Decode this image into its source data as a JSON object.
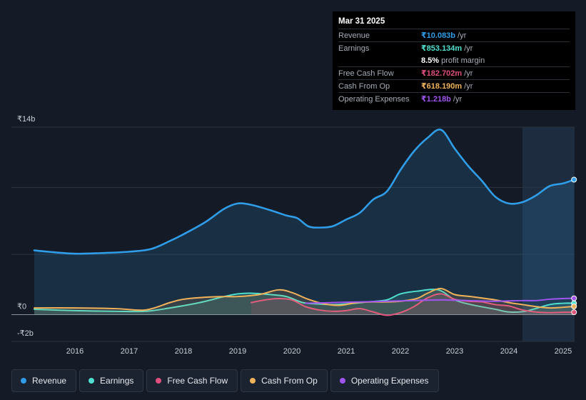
{
  "tooltip": {
    "date": "Mar 31 2025",
    "rows": [
      {
        "label": "Revenue",
        "value": "₹10.083b",
        "unit": "/yr",
        "color": "#2f9de8"
      },
      {
        "label": "Earnings",
        "value": "₹853.134m",
        "unit": "/yr",
        "color": "#4fe0cf"
      },
      {
        "label": "",
        "value": "8.5%",
        "unit": "profit margin",
        "color": "#ffffff"
      },
      {
        "label": "Free Cash Flow",
        "value": "₹182.702m",
        "unit": "/yr",
        "color": "#e0507f"
      },
      {
        "label": "Cash From Op",
        "value": "₹618.190m",
        "unit": "/yr",
        "color": "#f0b25a"
      },
      {
        "label": "Operating Expenses",
        "value": "₹1.218b",
        "unit": "/yr",
        "color": "#a155f0"
      }
    ]
  },
  "legend": [
    {
      "label": "Revenue",
      "color": "#2f9de8"
    },
    {
      "label": "Earnings",
      "color": "#4fe0cf"
    },
    {
      "label": "Free Cash Flow",
      "color": "#e0507f"
    },
    {
      "label": "Cash From Op",
      "color": "#f0b25a"
    },
    {
      "label": "Operating Expenses",
      "color": "#a155f0"
    }
  ],
  "chart_data": {
    "type": "area",
    "title": "",
    "xlabel": "",
    "ylabel": "",
    "y_unit": "₹ billions",
    "ylim": [
      -2,
      14
    ],
    "y_tick_labels": [
      {
        "value": 14,
        "label": "₹14b"
      },
      {
        "value": 0,
        "label": "₹0"
      },
      {
        "value": -2,
        "label": "-₹2b"
      }
    ],
    "xlim": [
      2015.2,
      2025.25
    ],
    "x_ticks": [
      2016,
      2017,
      2018,
      2019,
      2020,
      2021,
      2022,
      2023,
      2024,
      2025
    ],
    "forecast_shade_start": 2024.25,
    "series": [
      {
        "name": "Revenue",
        "color": "#2f9de8",
        "fill": true,
        "x": [
          2015.25,
          2015.5,
          2016,
          2016.5,
          2017,
          2017.4,
          2017.75,
          2018,
          2018.4,
          2018.75,
          2019,
          2019.25,
          2019.6,
          2019.9,
          2020.1,
          2020.3,
          2020.5,
          2020.75,
          2021,
          2021.25,
          2021.5,
          2021.75,
          2022,
          2022.25,
          2022.5,
          2022.75,
          2023,
          2023.25,
          2023.5,
          2023.75,
          2024,
          2024.25,
          2024.5,
          2024.75,
          2025,
          2025.2
        ],
        "values": [
          4.8,
          4.7,
          4.55,
          4.6,
          4.7,
          4.9,
          5.5,
          6.0,
          6.9,
          7.9,
          8.3,
          8.2,
          7.8,
          7.4,
          7.2,
          6.6,
          6.5,
          6.6,
          7.1,
          7.6,
          8.6,
          9.2,
          10.8,
          12.2,
          13.2,
          13.8,
          12.4,
          11.1,
          10.0,
          8.8,
          8.3,
          8.4,
          8.9,
          9.6,
          9.8,
          10.08
        ]
      },
      {
        "name": "Earnings",
        "color": "#4fe0cf",
        "fill": true,
        "x": [
          2015.25,
          2016,
          2016.75,
          2017.3,
          2017.75,
          2018.3,
          2018.75,
          2019,
          2019.25,
          2019.6,
          2019.9,
          2020.2,
          2020.5,
          2020.75,
          2021,
          2021.4,
          2021.75,
          2022,
          2022.3,
          2022.7,
          2023,
          2023.3,
          2023.75,
          2024,
          2024.3,
          2024.75,
          2025,
          2025.2
        ],
        "values": [
          0.4,
          0.3,
          0.25,
          0.25,
          0.5,
          0.9,
          1.35,
          1.55,
          1.6,
          1.5,
          1.35,
          0.9,
          0.8,
          0.75,
          0.8,
          0.95,
          1.1,
          1.55,
          1.75,
          1.85,
          1.1,
          0.75,
          0.4,
          0.2,
          0.25,
          0.75,
          0.85,
          0.85
        ]
      },
      {
        "name": "Free Cash Flow",
        "color": "#e0507f",
        "fill": true,
        "x": [
          2019.25,
          2019.5,
          2019.75,
          2020,
          2020.25,
          2020.5,
          2020.75,
          2021,
          2021.25,
          2021.5,
          2021.75,
          2022,
          2022.25,
          2022.5,
          2022.75,
          2023,
          2023.25,
          2023.5,
          2023.75,
          2024,
          2024.25,
          2024.5,
          2024.75,
          2025,
          2025.2
        ],
        "values": [
          0.9,
          1.1,
          1.2,
          1.1,
          0.6,
          0.35,
          0.25,
          0.3,
          0.45,
          0.2,
          -0.05,
          0.15,
          0.6,
          1.25,
          1.55,
          1.15,
          1.0,
          0.95,
          0.75,
          0.65,
          0.35,
          0.2,
          0.15,
          0.18,
          0.18
        ]
      },
      {
        "name": "Cash From Op",
        "color": "#f0b25a",
        "fill": true,
        "x": [
          2015.25,
          2016,
          2016.75,
          2017.3,
          2017.75,
          2018,
          2018.4,
          2018.75,
          2019,
          2019.4,
          2019.75,
          2020,
          2020.3,
          2020.6,
          2020.9,
          2021.2,
          2021.5,
          2021.75,
          2022,
          2022.3,
          2022.5,
          2022.75,
          2023,
          2023.3,
          2023.75,
          2024,
          2024.25,
          2024.5,
          2024.75,
          2025,
          2025.2
        ],
        "values": [
          0.5,
          0.5,
          0.45,
          0.35,
          0.9,
          1.15,
          1.3,
          1.35,
          1.35,
          1.5,
          1.85,
          1.65,
          1.15,
          0.8,
          0.7,
          0.9,
          0.95,
          0.95,
          1.0,
          1.2,
          1.6,
          1.95,
          1.5,
          1.35,
          1.1,
          0.9,
          0.75,
          0.6,
          0.5,
          0.55,
          0.62
        ]
      },
      {
        "name": "Operating Expenses",
        "color": "#a155f0",
        "fill": false,
        "x": [
          2020.25,
          2020.75,
          2021.25,
          2021.75,
          2022.25,
          2022.75,
          2023.25,
          2023.75,
          2024.25,
          2024.5,
          2024.75,
          2025,
          2025.2
        ],
        "values": [
          0.85,
          0.9,
          0.95,
          1.0,
          1.05,
          1.1,
          1.05,
          1.0,
          1.05,
          1.05,
          1.15,
          1.2,
          1.22
        ]
      }
    ]
  }
}
